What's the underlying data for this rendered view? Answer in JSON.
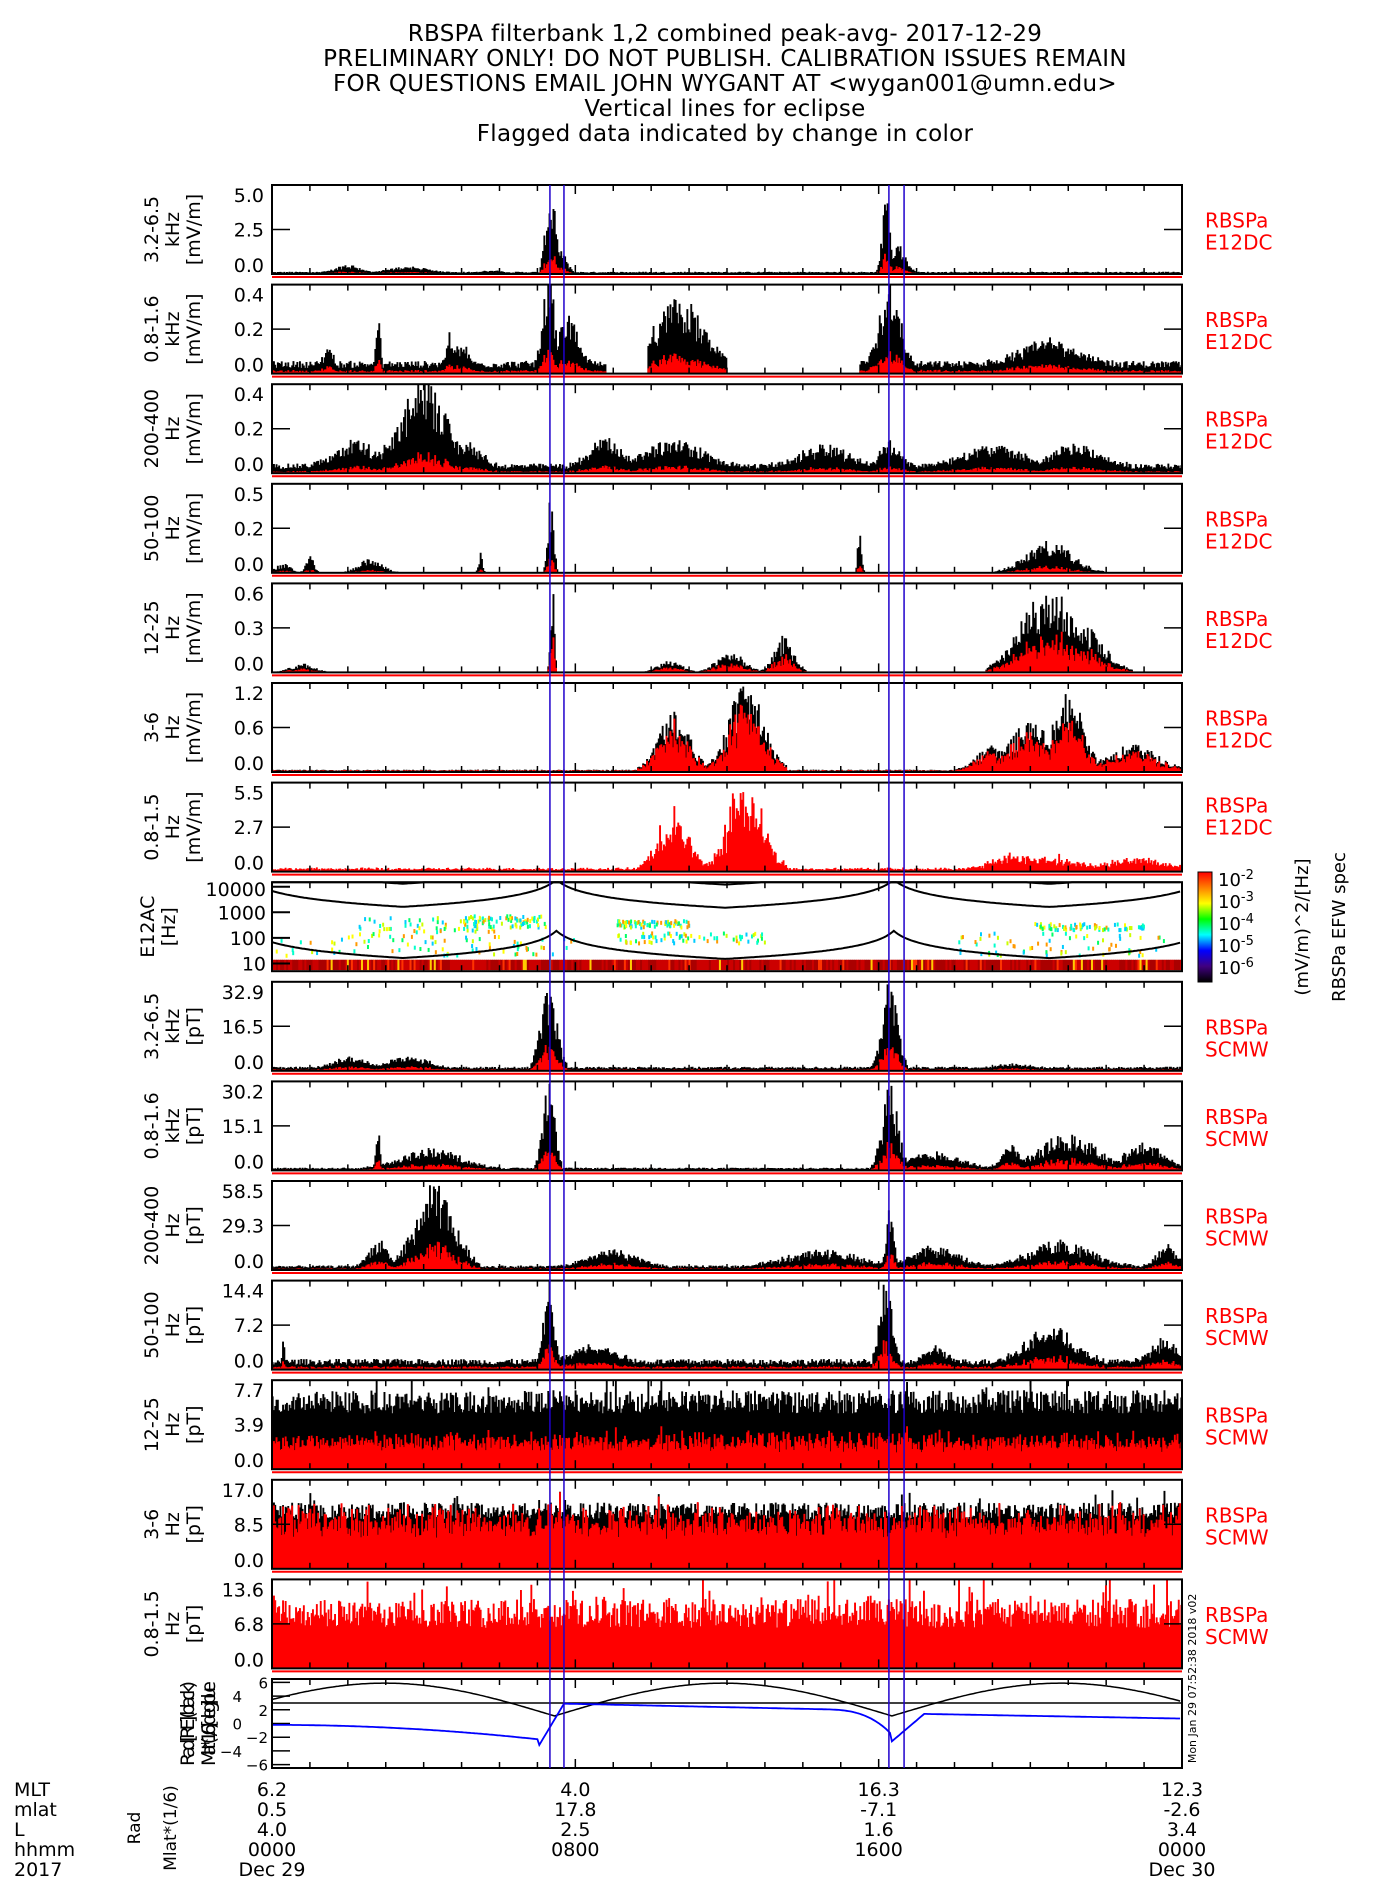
{
  "title_lines": [
    "RBSPA filterbank 1,2 combined peak-avg- 2017-12-29",
    "PRELIMINARY ONLY! DO NOT PUBLISH. CALIBRATION ISSUES REMAIN",
    "FOR QUESTIONS EMAIL JOHN WYGANT AT <wygan001@umn.edu>",
    "Vertical lines for eclipse",
    "Flagged data indicated by change in color"
  ],
  "chart_data": {
    "type": "line",
    "x_unit": "hours since 2017-12-29 00:00 UT",
    "xlim": [
      0,
      24
    ],
    "x_tick_interval_hours": 1,
    "eclipse_lines_hours": [
      7.33,
      7.7,
      16.27,
      16.67
    ],
    "colors": {
      "peak": "#000000",
      "avg": "#ff0000",
      "eclipse": "#1f00cc",
      "label": "#ff0000",
      "ephem_mlat": "#0000ff"
    },
    "timestamp_vertical": "Mon Jan 29 07:52:38 2018 v02",
    "panels": [
      {
        "ylabel": [
          "3.2-6.5",
          "kHz",
          "[mV/m]"
        ],
        "yticks": [
          "0.0",
          "2.5",
          "5.0"
        ],
        "ylim": [
          0,
          5.0
        ],
        "source": [
          "RBSPa",
          "E12DC"
        ],
        "baseline": 0.08,
        "bursts": [
          [
            2.0,
            0.6,
            0.45
          ],
          [
            3.6,
            0.9,
            0.35
          ],
          [
            5.8,
            0.4,
            0.1
          ],
          [
            7.35,
            0.25,
            5.0
          ],
          [
            7.6,
            0.3,
            1.4
          ],
          [
            16.2,
            0.2,
            4.2
          ],
          [
            16.5,
            0.4,
            1.8
          ]
        ],
        "avg_ratio": 0.25
      },
      {
        "ylabel": [
          "0.8-1.6",
          "kHz",
          "[mV/m]"
        ],
        "yticks": [
          "0.0",
          "0.2",
          "0.4"
        ],
        "ylim": [
          0,
          0.4
        ],
        "source": [
          "RBSPa",
          "E12DC"
        ],
        "baseline": 0.04,
        "bursts": [
          [
            1.5,
            0.2,
            0.1
          ],
          [
            2.8,
            0.1,
            0.26
          ],
          [
            4.7,
            0.2,
            0.14
          ],
          [
            5.0,
            0.3,
            0.1
          ],
          [
            7.3,
            0.3,
            0.4
          ],
          [
            7.8,
            0.5,
            0.22
          ],
          [
            10.7,
            1.3,
            0.3
          ],
          [
            16.3,
            0.5,
            0.4
          ],
          [
            20.5,
            1.4,
            0.12
          ]
        ],
        "avg_ratio": 0.25,
        "gaps": [
          [
            8.8,
            9.9
          ],
          [
            12.0,
            15.5
          ]
        ]
      },
      {
        "ylabel": [
          "200-400",
          "Hz",
          "[mV/m]"
        ],
        "yticks": [
          "0.0",
          "0.2",
          "0.4"
        ],
        "ylim": [
          0,
          0.4
        ],
        "source": [
          "RBSPa",
          "E12DC"
        ],
        "baseline": 0.03,
        "bursts": [
          [
            2.2,
            1.0,
            0.12
          ],
          [
            4.0,
            1.2,
            0.38
          ],
          [
            5.2,
            0.6,
            0.12
          ],
          [
            8.8,
            0.8,
            0.14
          ],
          [
            10.6,
            1.5,
            0.12
          ],
          [
            14.6,
            1.2,
            0.1
          ],
          [
            16.3,
            0.5,
            0.12
          ],
          [
            19.0,
            1.5,
            0.1
          ],
          [
            21.2,
            1.2,
            0.1
          ]
        ],
        "avg_ratio": 0.2
      },
      {
        "ylabel": [
          "50-100",
          "Hz",
          "[mV/m]"
        ],
        "yticks": [
          "0.0",
          "0.2",
          "0.5"
        ],
        "ylim": [
          0,
          0.5
        ],
        "source": [
          "RBSPa",
          "E12DC"
        ],
        "baseline": 0.0,
        "bursts": [
          [
            0.3,
            0.4,
            0.05
          ],
          [
            1.0,
            0.2,
            0.1
          ],
          [
            2.6,
            0.6,
            0.08
          ],
          [
            5.5,
            0.1,
            0.12
          ],
          [
            7.35,
            0.15,
            0.5
          ],
          [
            15.5,
            0.1,
            0.25
          ],
          [
            20.5,
            1.2,
            0.18
          ]
        ],
        "avg_ratio": 0.2
      },
      {
        "ylabel": [
          "12-25",
          "Hz",
          "[mV/m]"
        ],
        "yticks": [
          "0.0",
          "0.3",
          "0.6"
        ],
        "ylim": [
          0,
          0.6
        ],
        "source": [
          "RBSPa",
          "E12DC"
        ],
        "baseline": 0.0,
        "bursts": [
          [
            0.8,
            0.6,
            0.06
          ],
          [
            7.4,
            0.1,
            0.6
          ],
          [
            10.5,
            0.6,
            0.08
          ],
          [
            12.1,
            0.7,
            0.15
          ],
          [
            13.5,
            0.5,
            0.25
          ],
          [
            20.5,
            1.4,
            0.6
          ],
          [
            21.5,
            1.0,
            0.3
          ]
        ],
        "avg_ratio": 0.45
      },
      {
        "ylabel": [
          "3-6",
          "Hz",
          "[mV/m]"
        ],
        "yticks": [
          "0.0",
          "0.6",
          "1.2"
        ],
        "ylim": [
          0,
          1.2
        ],
        "source": [
          "RBSPa",
          "E12DC"
        ],
        "baseline": 0.02,
        "bursts": [
          [
            10.6,
            0.8,
            0.85
          ],
          [
            12.5,
            0.9,
            1.2
          ],
          [
            19.0,
            0.8,
            0.35
          ],
          [
            20.0,
            1.0,
            0.7
          ],
          [
            21.0,
            0.8,
            1.05
          ],
          [
            22.7,
            1.3,
            0.35
          ]
        ],
        "avg_ratio": 0.75
      },
      {
        "ylabel": [
          "0.8-1.5",
          "Hz",
          "[mV/m]"
        ],
        "yticks": [
          "0.0",
          "2.7",
          "5.5"
        ],
        "ylim": [
          0,
          5.5
        ],
        "source": [
          "RBSPa",
          "E12DC"
        ],
        "baseline": 0.15,
        "bursts": [
          [
            10.6,
            0.8,
            3.5
          ],
          [
            12.5,
            0.9,
            5.5
          ],
          [
            19.5,
            1.0,
            1.0
          ],
          [
            20.5,
            1.5,
            0.8
          ],
          [
            22.8,
            1.3,
            0.8
          ]
        ],
        "avg_ratio": 1.0,
        "red_only": true
      },
      {
        "kind": "spectrogram",
        "ylabel": [
          "E12AC",
          "[Hz]"
        ],
        "yticks": [
          "10",
          "100",
          "1000",
          "10000"
        ],
        "ylim_log": [
          5,
          15000
        ],
        "colorbar": {
          "ticks": [
            "10^-2",
            "10^-3",
            "10^-4",
            "10^-5",
            "10^-6"
          ],
          "unit": "(mV/m)^2/[Hz]",
          "title": "RBSPa EFW spec"
        }
      },
      {
        "ylabel": [
          "3.2-6.5",
          "kHz",
          "[pT]"
        ],
        "yticks": [
          "0.0",
          "16.5",
          "32.9"
        ],
        "ylim": [
          0,
          32.9
        ],
        "source": [
          "RBSPa",
          "SCMW"
        ],
        "baseline": 1.0,
        "bursts": [
          [
            2.1,
            0.8,
            4.5
          ],
          [
            3.6,
            0.9,
            5.0
          ],
          [
            7.3,
            0.4,
            32.9
          ],
          [
            16.3,
            0.4,
            32.9
          ],
          [
            19.5,
            0.8,
            1.5
          ]
        ],
        "avg_ratio": 0.3
      },
      {
        "ylabel": [
          "0.8-1.6",
          "kHz",
          "[pT]"
        ],
        "yticks": [
          "0.0",
          "15.1",
          "30.2"
        ],
        "ylim": [
          0,
          30.2
        ],
        "source": [
          "RBSPa",
          "SCMW"
        ],
        "baseline": 0.6,
        "bursts": [
          [
            2.8,
            0.1,
            15.0
          ],
          [
            4.2,
            1.5,
            7.0
          ],
          [
            7.3,
            0.3,
            30.2
          ],
          [
            16.3,
            0.4,
            30.2
          ],
          [
            17.5,
            1.3,
            6.0
          ],
          [
            19.5,
            0.5,
            8.0
          ],
          [
            21.0,
            1.5,
            12.0
          ],
          [
            23.0,
            1.0,
            9.0
          ]
        ],
        "avg_ratio": 0.3
      },
      {
        "ylabel": [
          "200-400",
          "Hz",
          "[pT]"
        ],
        "yticks": [
          "0.0",
          "29.3",
          "58.5"
        ],
        "ylim": [
          0,
          58.5
        ],
        "source": [
          "RBSPa",
          "SCMW"
        ],
        "baseline": 2.0,
        "bursts": [
          [
            2.8,
            0.5,
            18.0
          ],
          [
            4.3,
            1.0,
            55.0
          ],
          [
            9.0,
            1.2,
            12.0
          ],
          [
            14.5,
            1.8,
            12.0
          ],
          [
            16.3,
            0.2,
            40.0
          ],
          [
            17.5,
            1.2,
            14.0
          ],
          [
            20.8,
            1.6,
            18.0
          ],
          [
            23.6,
            0.5,
            15.0
          ]
        ],
        "avg_ratio": 0.3
      },
      {
        "ylabel": [
          "50-100",
          "Hz",
          "[pT]"
        ],
        "yticks": [
          "0.0",
          "7.2",
          "14.4"
        ],
        "ylim": [
          0,
          14.4
        ],
        "source": [
          "RBSPa",
          "SCMW"
        ],
        "baseline": 1.2,
        "bursts": [
          [
            0.3,
            0.05,
            6.0
          ],
          [
            7.3,
            0.25,
            14.4
          ],
          [
            8.5,
            1.0,
            3.0
          ],
          [
            16.2,
            0.3,
            14.4
          ],
          [
            17.5,
            0.5,
            2.5
          ],
          [
            20.5,
            1.2,
            6.0
          ],
          [
            23.5,
            0.6,
            4.0
          ]
        ],
        "avg_ratio": 0.3
      },
      {
        "ylabel": [
          "12-25",
          "Hz",
          "[pT]"
        ],
        "yticks": [
          "0.0",
          "3.9",
          "7.7"
        ],
        "ylim": [
          0,
          7.7
        ],
        "source": [
          "RBSPa",
          "SCMW"
        ],
        "baseline": 5.8,
        "bursts": [],
        "avg_ratio": 0.42,
        "noise": 1.0
      },
      {
        "ylabel": [
          "3-6",
          "Hz",
          "[pT]"
        ],
        "yticks": [
          "0.0",
          "8.5",
          "17.0"
        ],
        "ylim": [
          0,
          17.0
        ],
        "source": [
          "RBSPa",
          "SCMW"
        ],
        "baseline": 11.0,
        "bursts": [],
        "avg_ratio": 0.85,
        "noise": 1.6
      },
      {
        "ylabel": [
          "0.8-1.5",
          "Hz",
          "[pT]"
        ],
        "yticks": [
          "0.0",
          "6.8",
          "13.6"
        ],
        "ylim": [
          0,
          13.6
        ],
        "source": [
          "RBSPa",
          "SCMW"
        ],
        "baseline": 8.8,
        "bursts": [],
        "avg_ratio": 1.0,
        "red_only": true,
        "steps": true
      },
      {
        "kind": "ephemeris",
        "ylabel": [
          "Rad [RE] (black)",
          "Mlat*(1/6) [deg] blue"
        ],
        "yticks": [
          "-6",
          "-4",
          "-2",
          "0",
          "2",
          "4",
          "6"
        ],
        "ylim": [
          -6.5,
          6.5
        ],
        "series": [
          {
            "name": "Rad",
            "color": "#000000"
          },
          {
            "name": "Mlat/6",
            "color": "#0000ff"
          }
        ],
        "reference_line": 3.0
      }
    ],
    "bottom_axis": {
      "row_labels": [
        "MLT",
        "mlat",
        "L",
        "hhmm",
        "2017"
      ],
      "axis_title": [
        "Rad",
        "Mlat*(1/6)"
      ],
      "columns": [
        {
          "hour": 0,
          "values": [
            "6.2",
            "0.5",
            "4.0",
            "0000",
            "Dec 29"
          ]
        },
        {
          "hour": 8,
          "values": [
            "4.0",
            "17.8",
            "2.5",
            "0800",
            ""
          ]
        },
        {
          "hour": 16,
          "values": [
            "16.3",
            "-7.1",
            "1.6",
            "1600",
            ""
          ]
        },
        {
          "hour": 24,
          "values": [
            "12.3",
            "-2.6",
            "3.4",
            "0000",
            "Dec 30"
          ]
        }
      ]
    }
  }
}
